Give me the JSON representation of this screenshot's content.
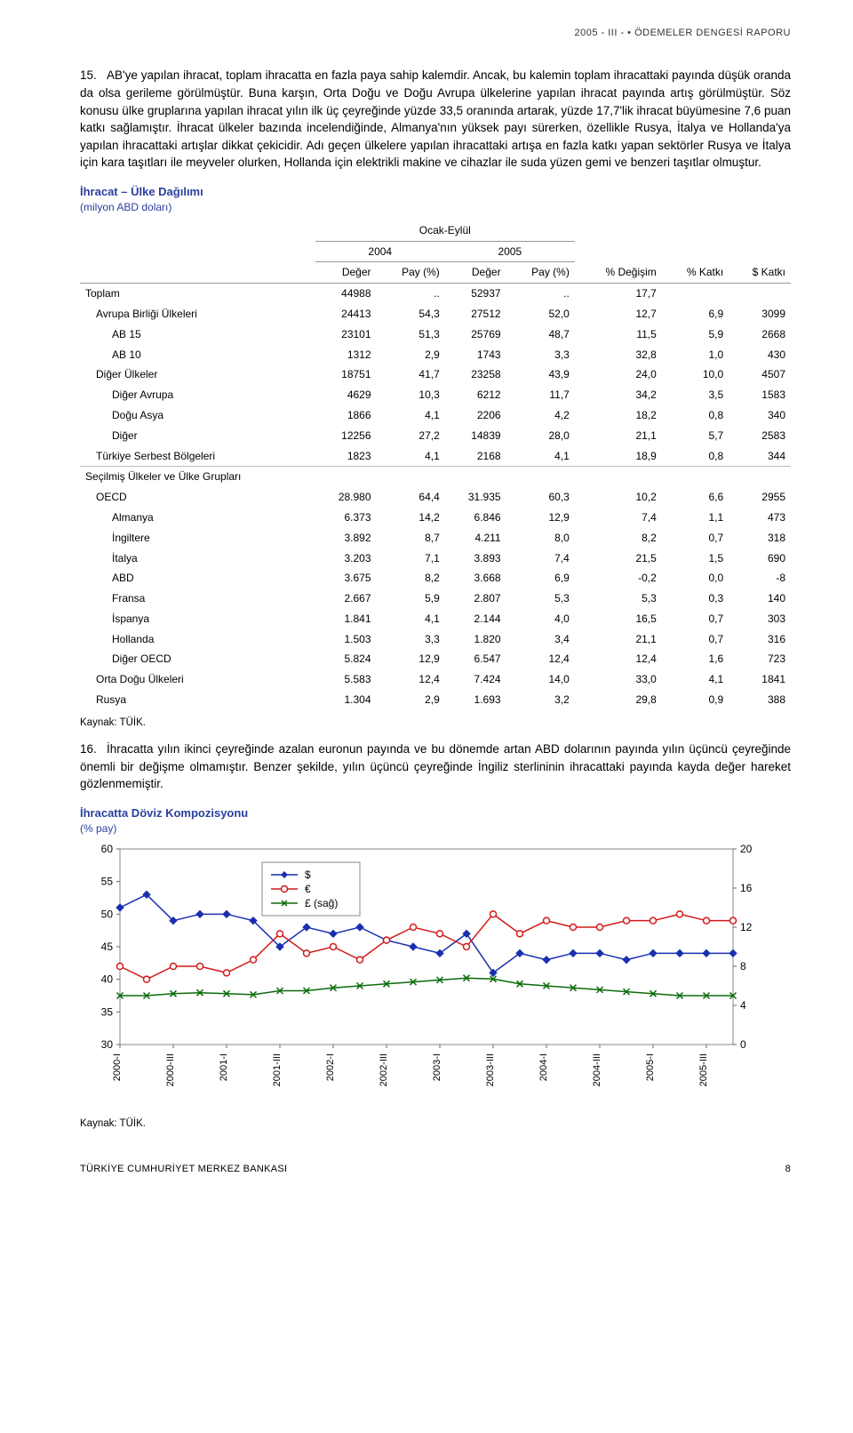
{
  "header_right": "2005 - III -  •  ÖDEMELER DENGESİ RAPORU",
  "para15_num": "15.",
  "para15": "AB'ye yapılan ihracat, toplam ihracatta en fazla paya sahip kalemdir. Ancak, bu kalemin toplam ihracattaki payında düşük oranda da olsa gerileme görülmüştür. Buna karşın, Orta Doğu ve Doğu Avrupa ülkelerine yapılan ihracat payında artış görülmüştür. Söz konusu ülke gruplarına yapılan ihracat yılın ilk üç çeyreğinde yüzde 33,5 oranında artarak, yüzde 17,7'lik ihracat büyümesine 7,6 puan katkı sağlamıştır. İhracat ülkeler bazında incelendiğinde, Almanya'nın yüksek payı sürerken, özellikle Rusya, İtalya ve Hollanda'ya yapılan ihracattaki artışlar dikkat çekicidir. Adı geçen ülkelere yapılan ihracattaki artışa en fazla katkı yapan sektörler Rusya ve İtalya için kara taşıtları ile meyveler olurken, Hollanda için elektrikli makine ve cihazlar ile suda yüzen gemi ve benzeri taşıtlar olmuştur.",
  "table": {
    "title": "İhracat – Ülke Dağılımı",
    "subtitle": "(milyon ABD doları)",
    "super_header": "Ocak-Eylül",
    "col_2004": "2004",
    "col_2005": "2005",
    "col_deger": "Değer",
    "col_pay": "Pay (%)",
    "col_degisim": "% Değişim",
    "col_katki": "% Katkı",
    "col_dolar_katki": "$ Katkı",
    "rows": [
      {
        "label": "Toplam",
        "d04": "44988",
        "p04": "..",
        "d05": "52937",
        "p05": "..",
        "deg": "17,7",
        "kat": "",
        "dk": "",
        "ind": 0,
        "top": true
      },
      {
        "label": "Avrupa Birliği Ülkeleri",
        "d04": "24413",
        "p04": "54,3",
        "d05": "27512",
        "p05": "52,0",
        "deg": "12,7",
        "kat": "6,9",
        "dk": "3099",
        "ind": 1
      },
      {
        "label": "AB 15",
        "d04": "23101",
        "p04": "51,3",
        "d05": "25769",
        "p05": "48,7",
        "deg": "11,5",
        "kat": "5,9",
        "dk": "2668",
        "ind": 2
      },
      {
        "label": "AB 10",
        "d04": "1312",
        "p04": "2,9",
        "d05": "1743",
        "p05": "3,3",
        "deg": "32,8",
        "kat": "1,0",
        "dk": "430",
        "ind": 2
      },
      {
        "label": "Diğer Ülkeler",
        "d04": "18751",
        "p04": "41,7",
        "d05": "23258",
        "p05": "43,9",
        "deg": "24,0",
        "kat": "10,0",
        "dk": "4507",
        "ind": 1
      },
      {
        "label": "Diğer Avrupa",
        "d04": "4629",
        "p04": "10,3",
        "d05": "6212",
        "p05": "11,7",
        "deg": "34,2",
        "kat": "3,5",
        "dk": "1583",
        "ind": 2
      },
      {
        "label": "Doğu Asya",
        "d04": "1866",
        "p04": "4,1",
        "d05": "2206",
        "p05": "4,2",
        "deg": "18,2",
        "kat": "0,8",
        "dk": "340",
        "ind": 2
      },
      {
        "label": "Diğer",
        "d04": "12256",
        "p04": "27,2",
        "d05": "14839",
        "p05": "28,0",
        "deg": "21,1",
        "kat": "5,7",
        "dk": "2583",
        "ind": 2
      },
      {
        "label": "Türkiye Serbest Bölgeleri",
        "d04": "1823",
        "p04": "4,1",
        "d05": "2168",
        "p05": "4,1",
        "deg": "18,9",
        "kat": "0,8",
        "dk": "344",
        "ind": 1
      },
      {
        "label": "Seçilmiş Ülkeler ve Ülke Grupları",
        "d04": "",
        "p04": "",
        "d05": "",
        "p05": "",
        "deg": "",
        "kat": "",
        "dk": "",
        "ind": 0,
        "top": true
      },
      {
        "label": "OECD",
        "d04": "28.980",
        "p04": "64,4",
        "d05": "31.935",
        "p05": "60,3",
        "deg": "10,2",
        "kat": "6,6",
        "dk": "2955",
        "ind": 1
      },
      {
        "label": "Almanya",
        "d04": "6.373",
        "p04": "14,2",
        "d05": "6.846",
        "p05": "12,9",
        "deg": "7,4",
        "kat": "1,1",
        "dk": "473",
        "ind": 2
      },
      {
        "label": "İngiltere",
        "d04": "3.892",
        "p04": "8,7",
        "d05": "4.211",
        "p05": "8,0",
        "deg": "8,2",
        "kat": "0,7",
        "dk": "318",
        "ind": 2
      },
      {
        "label": "İtalya",
        "d04": "3.203",
        "p04": "7,1",
        "d05": "3.893",
        "p05": "7,4",
        "deg": "21,5",
        "kat": "1,5",
        "dk": "690",
        "ind": 2
      },
      {
        "label": "ABD",
        "d04": "3.675",
        "p04": "8,2",
        "d05": "3.668",
        "p05": "6,9",
        "deg": "-0,2",
        "kat": "0,0",
        "dk": "-8",
        "ind": 2
      },
      {
        "label": "Fransa",
        "d04": "2.667",
        "p04": "5,9",
        "d05": "2.807",
        "p05": "5,3",
        "deg": "5,3",
        "kat": "0,3",
        "dk": "140",
        "ind": 2
      },
      {
        "label": "İspanya",
        "d04": "1.841",
        "p04": "4,1",
        "d05": "2.144",
        "p05": "4,0",
        "deg": "16,5",
        "kat": "0,7",
        "dk": "303",
        "ind": 2
      },
      {
        "label": "Hollanda",
        "d04": "1.503",
        "p04": "3,3",
        "d05": "1.820",
        "p05": "3,4",
        "deg": "21,1",
        "kat": "0,7",
        "dk": "316",
        "ind": 2
      },
      {
        "label": "Diğer OECD",
        "d04": "5.824",
        "p04": "12,9",
        "d05": "6.547",
        "p05": "12,4",
        "deg": "12,4",
        "kat": "1,6",
        "dk": "723",
        "ind": 2
      },
      {
        "label": "Orta Doğu Ülkeleri",
        "d04": "5.583",
        "p04": "12,4",
        "d05": "7.424",
        "p05": "14,0",
        "deg": "33,0",
        "kat": "4,1",
        "dk": "1841",
        "ind": 1
      },
      {
        "label": "Rusya",
        "d04": "1.304",
        "p04": "2,9",
        "d05": "1.693",
        "p05": "3,2",
        "deg": "29,8",
        "kat": "0,9",
        "dk": "388",
        "ind": 1
      }
    ],
    "source": "Kaynak: TÜİK."
  },
  "para16_num": "16.",
  "para16": "İhracatta yılın ikinci çeyreğinde azalan euronun payında ve bu dönemde artan ABD dolarının payında yılın üçüncü çeyreğinde önemli bir değişme olmamıştır. Benzer şekilde, yılın üçüncü çeyreğinde İngiliz sterlininin ihracattaki payında kayda değer hareket gözlenmemiştir.",
  "chart": {
    "title": "İhracatta Döviz Kompozisyonu",
    "subtitle": "(% pay)",
    "legend_usd": "$",
    "legend_eur": "€",
    "legend_gbp": "£ (sağ)",
    "x_labels": [
      "2000-I",
      "2000-III",
      "2001-I",
      "2001-III",
      "2002-I",
      "2002-III",
      "2003-I",
      "2003-III",
      "2004-I",
      "2004-III",
      "2005-I",
      "2005-III"
    ],
    "left_ticks": [
      30,
      35,
      40,
      45,
      50,
      55,
      60
    ],
    "right_ticks": [
      0,
      4,
      8,
      12,
      16,
      20
    ],
    "series": {
      "usd": {
        "color": "#1a2fb0",
        "marker": "diamond",
        "values": [
          51,
          53,
          49,
          50,
          50,
          49,
          45,
          48,
          47,
          48,
          46,
          45,
          44,
          47,
          41,
          44,
          43,
          44,
          44,
          43,
          44,
          44,
          44,
          44
        ]
      },
      "eur": {
        "color": "#d11a1a",
        "marker": "circle",
        "values": [
          42,
          40,
          42,
          42,
          41,
          43,
          47,
          44,
          45,
          43,
          46,
          48,
          47,
          45,
          50,
          47,
          49,
          48,
          48,
          49,
          49,
          50,
          49,
          49
        ]
      },
      "gbp": {
        "color": "#0b6b0b",
        "marker": "x",
        "values": [
          5,
          5,
          5.2,
          5.3,
          5.2,
          5.1,
          5.5,
          5.5,
          5.8,
          6.0,
          6.2,
          6.4,
          6.6,
          6.8,
          6.7,
          6.2,
          6.0,
          5.8,
          5.6,
          5.4,
          5.2,
          5.0,
          5.0,
          5.0
        ]
      }
    },
    "source": "Kaynak: TÜİK."
  },
  "footer_left": "TÜRKİYE CUMHURİYET MERKEZ BANKASI",
  "footer_page": "8"
}
